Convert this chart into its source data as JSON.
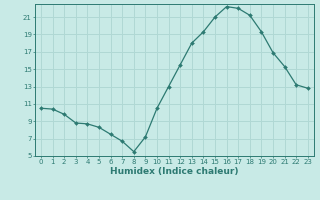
{
  "x": [
    0,
    1,
    2,
    3,
    4,
    5,
    6,
    7,
    8,
    9,
    10,
    11,
    12,
    13,
    14,
    15,
    16,
    17,
    18,
    19,
    20,
    21,
    22,
    23
  ],
  "y": [
    10.5,
    10.4,
    9.8,
    8.8,
    8.7,
    8.3,
    7.5,
    6.7,
    5.5,
    7.2,
    10.5,
    13.0,
    15.5,
    18.0,
    19.3,
    21.0,
    22.2,
    22.0,
    21.2,
    19.3,
    16.9,
    15.3,
    13.2,
    12.8
  ],
  "xlabel": "Humidex (Indice chaleur)",
  "bg_color": "#c8eae6",
  "grid_color": "#b0d8d4",
  "line_color": "#2d7a72",
  "ylim": [
    5,
    22.5
  ],
  "xlim": [
    -0.5,
    23.5
  ],
  "yticks": [
    5,
    7,
    9,
    11,
    13,
    15,
    17,
    19,
    21
  ],
  "xticks": [
    0,
    1,
    2,
    3,
    4,
    5,
    6,
    7,
    8,
    9,
    10,
    11,
    12,
    13,
    14,
    15,
    16,
    17,
    18,
    19,
    20,
    21,
    22,
    23
  ],
  "tick_fontsize": 5.0,
  "xlabel_fontsize": 6.5
}
